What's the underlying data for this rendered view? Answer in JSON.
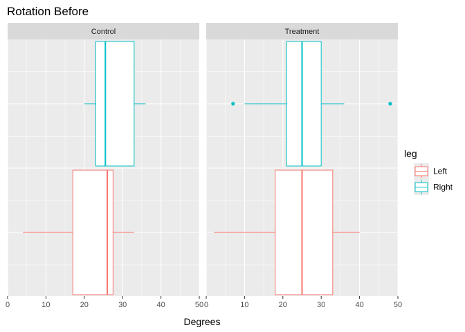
{
  "chart_data": {
    "type": "boxplot",
    "title": "Rotation Before",
    "xlabel": "Degrees",
    "ylabel": "",
    "xlim": [
      0,
      50
    ],
    "x_ticks": [
      "0",
      "10",
      "20",
      "30",
      "40",
      "50"
    ],
    "grid": true,
    "orientation": "horizontal",
    "panels": [
      {
        "name": "Control",
        "boxes": [
          {
            "group": "Right",
            "min": 20,
            "q1": 23,
            "median": 25.5,
            "q3": 33,
            "max": 36,
            "outliers": []
          },
          {
            "group": "Left",
            "min": 4,
            "q1": 17,
            "median": 26,
            "q3": 27.5,
            "max": 33,
            "outliers": []
          }
        ]
      },
      {
        "name": "Treatment",
        "boxes": [
          {
            "group": "Right",
            "min": 10,
            "q1": 21,
            "median": 25,
            "q3": 30,
            "max": 36,
            "outliers": [
              7,
              48
            ]
          },
          {
            "group": "Left",
            "min": 2,
            "q1": 18,
            "median": 25,
            "q3": 33,
            "max": 40,
            "outliers": []
          }
        ]
      }
    ],
    "legend": {
      "title": "leg",
      "position": "right",
      "entries": [
        {
          "label": "Left",
          "color": "#F8766D"
        },
        {
          "label": "Right",
          "color": "#00BFC4"
        }
      ]
    }
  },
  "colors": {
    "panel_background": "#EBEBEB",
    "strip_background": "#D9D9D9",
    "grid_major": "#FFFFFF"
  }
}
